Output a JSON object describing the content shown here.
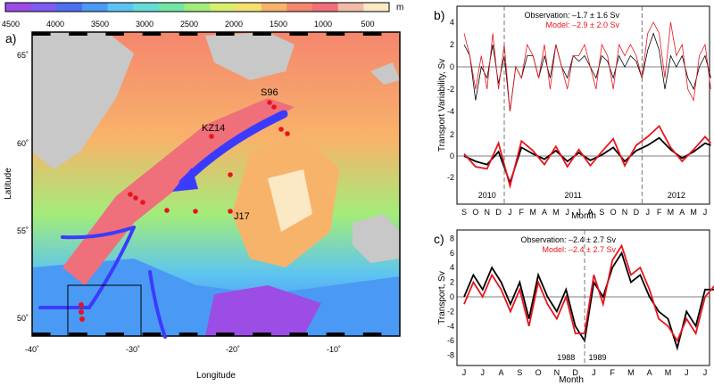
{
  "colorbar": {
    "ticks": [
      "4500",
      "4000",
      "3500",
      "3000",
      "2500",
      "2000",
      "1500",
      "1000",
      "500"
    ],
    "unit": "m",
    "colors": [
      "#9b4de6",
      "#7d5cf0",
      "#4f6ff2",
      "#4a9af5",
      "#5cc4f2",
      "#66dcd8",
      "#73e6a6",
      "#a3ec7a",
      "#d8ef6e",
      "#f5e06e",
      "#f8b36a",
      "#f5866e",
      "#ef6f7a",
      "#f2bba8",
      "#fbe8c4"
    ]
  },
  "panel_a": {
    "label": "a)",
    "xlabel": "Longitude",
    "ylabel": "Latitude",
    "xticks": [
      "-40˚",
      "-30˚",
      "-20˚",
      "-10˚"
    ],
    "yticks": [
      "65˚",
      "60˚",
      "55˚",
      "50˚"
    ],
    "sites": [
      "S96",
      "KZ14",
      "J17"
    ],
    "land_color": "#c8c8c8",
    "arrow_color": "#3b3bff",
    "point_color": "#e8141c"
  },
  "panel_b": {
    "label": "b)",
    "obs_text": "Observation: –1.7 ± 1.6 Sv",
    "model_text": "Model: –2.9 ± 2.0 Sv",
    "ylabel": "Transport Variability, Sv",
    "xlabel": "Month",
    "years": [
      "2010",
      "2011",
      "2012"
    ],
    "months": [
      "S",
      "O",
      "N",
      "D",
      "J",
      "F",
      "M",
      "A",
      "M",
      "J",
      "J",
      "A",
      "S",
      "O",
      "N",
      "D",
      "J",
      "F",
      "M",
      "A",
      "M",
      "J"
    ],
    "top_yticks": [
      "4",
      "2",
      "0",
      "-2",
      "-4"
    ],
    "bottom_yticks": [
      "2",
      "0",
      "-2"
    ]
  },
  "panel_c": {
    "label": "c)",
    "obs_text": "Observation: –2.4 ± 2.7 Sv",
    "model_text": "Model: –2.4 ± 2.7 Sv",
    "ylabel": "Transport, Sv",
    "xlabel": "Month",
    "years": [
      "1988",
      "1989"
    ],
    "months": [
      "J",
      "J",
      "A",
      "S",
      "O",
      "N",
      "D",
      "J",
      "F",
      "M",
      "A",
      "M",
      "J",
      "J"
    ],
    "yticks": [
      "8",
      "6",
      "4",
      "2",
      "0",
      "-2",
      "-4",
      "-6",
      "-8"
    ]
  },
  "chart_data": [
    {
      "type": "line",
      "panel": "b-top",
      "x_unit": "month index (0 = Sep 2010)",
      "ylim": [
        -5,
        5
      ],
      "series": [
        {
          "name": "Observation",
          "color": "#000000",
          "x": [
            0,
            0.5,
            1,
            1.5,
            2,
            2.5,
            3,
            3.5,
            4,
            4.5,
            5,
            5.5,
            6,
            6.5,
            7,
            7.5,
            8,
            8.5,
            9,
            9.5,
            10,
            10.5,
            11,
            11.5,
            12,
            12.5,
            13,
            13.5,
            14,
            14.5,
            15,
            15.5,
            16,
            16.5,
            17,
            17.5,
            18,
            18.5,
            19,
            19.5,
            20,
            20.5,
            21,
            21.5
          ],
          "y": [
            2,
            1,
            -3,
            0,
            -1,
            2,
            -1.5,
            1,
            -4,
            0,
            -1,
            1,
            1,
            -1,
            1,
            -1,
            2,
            0,
            -1,
            1,
            0.5,
            1,
            0,
            -1,
            1,
            0.5,
            -1,
            1,
            0,
            1,
            0.5,
            -1,
            1.5,
            3,
            1.5,
            -2,
            1,
            0,
            1,
            -1,
            -2,
            0,
            1,
            -1
          ]
        },
        {
          "name": "Model",
          "color": "#e8141c",
          "x": [
            0,
            0.5,
            1,
            1.5,
            2,
            2.5,
            3,
            3.5,
            4,
            4.5,
            5,
            5.5,
            6,
            6.5,
            7,
            7.5,
            8,
            8.5,
            9,
            9.5,
            10,
            10.5,
            11,
            11.5,
            12,
            12.5,
            13,
            13.5,
            14,
            14.5,
            15,
            15.5,
            16,
            16.5,
            17,
            17.5,
            18,
            18.5,
            19,
            19.5,
            20,
            20.5,
            21,
            21.5
          ],
          "y": [
            3,
            1,
            -2,
            1,
            -2,
            3,
            -2,
            2,
            -4,
            0,
            -1,
            2,
            1,
            -1,
            2,
            -2,
            2,
            0,
            -2,
            1,
            1,
            2,
            0,
            -2,
            2,
            1,
            -2,
            2,
            1,
            2,
            1,
            -1,
            3,
            4,
            3,
            -1,
            4,
            1,
            2,
            -2,
            -3,
            1,
            2,
            -2
          ]
        }
      ]
    },
    {
      "type": "line",
      "panel": "b-bottom",
      "ylim": [
        -3,
        3
      ],
      "series": [
        {
          "name": "Observation",
          "color": "#000000",
          "x": [
            0,
            1,
            2,
            3,
            4,
            5,
            6,
            7,
            8,
            9,
            10,
            11,
            12,
            13,
            14,
            15,
            16,
            17,
            18,
            19,
            20,
            21,
            21.5
          ],
          "y": [
            0,
            -0.5,
            -0.8,
            0.4,
            -2.5,
            0.8,
            0.2,
            -0.3,
            0.5,
            -0.5,
            0.3,
            -0.4,
            0.1,
            0.8,
            -0.5,
            0.5,
            1,
            1.7,
            0.6,
            -0.2,
            0.4,
            1.2,
            1
          ]
        },
        {
          "name": "Model",
          "color": "#e8141c",
          "x": [
            0,
            1,
            2,
            3,
            4,
            5,
            6,
            7,
            8,
            9,
            10,
            11,
            12,
            13,
            14,
            15,
            16,
            17,
            18,
            19,
            20,
            21,
            21.5
          ],
          "y": [
            0.2,
            -1,
            -1.2,
            1.2,
            -2.8,
            1.4,
            0.5,
            -0.8,
            0.9,
            -1,
            0.6,
            -0.9,
            0.4,
            1.6,
            -0.9,
            1,
            1.8,
            2.8,
            0.8,
            -0.5,
            0.6,
            1.8,
            1.2
          ]
        }
      ]
    },
    {
      "type": "line",
      "panel": "c",
      "ylim": [
        -9,
        9
      ],
      "series": [
        {
          "name": "Observation",
          "color": "#000000",
          "x": [
            0,
            0.5,
            1,
            1.5,
            2,
            2.5,
            3,
            3.5,
            4,
            4.5,
            5,
            5.5,
            6,
            6.5,
            7,
            7.5,
            8,
            8.5,
            9,
            9.5,
            10,
            10.5,
            11,
            11.5,
            12,
            12.5,
            13,
            13.5
          ],
          "y": [
            0,
            3,
            1,
            4,
            2,
            -1,
            2,
            -3,
            3,
            0,
            -2,
            1,
            -4,
            -6,
            2,
            0,
            4,
            6,
            2,
            3,
            0,
            -2,
            -3,
            -7,
            -2,
            -4,
            1,
            1
          ]
        },
        {
          "name": "Model",
          "color": "#e8141c",
          "x": [
            0,
            0.5,
            1,
            1.5,
            2,
            2.5,
            3,
            3.5,
            4,
            4.5,
            5,
            5.5,
            6,
            6.5,
            7,
            7.5,
            8,
            8.5,
            9,
            9.5,
            10,
            10.5,
            11,
            11.5,
            12,
            12.5,
            13,
            13.5
          ],
          "y": [
            -1,
            2,
            0,
            3,
            1,
            -2,
            1,
            -4,
            2,
            -1,
            -3,
            0,
            -5,
            -5,
            3,
            -1,
            5,
            7,
            3,
            4,
            1,
            -3,
            -4,
            -6,
            -3,
            -5,
            0,
            1.5
          ]
        }
      ]
    }
  ]
}
